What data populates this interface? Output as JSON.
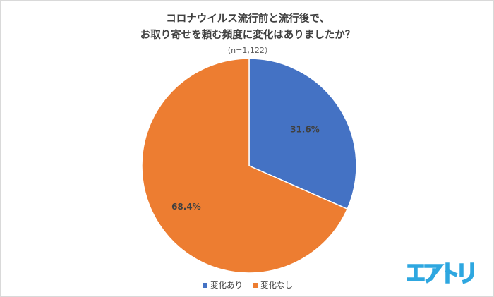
{
  "title": {
    "line1": "コロナウイルス流行前と流行後で、",
    "line2": "お取り寄せを頼む頻度に変化はありましたか？"
  },
  "sample_size": "（n=1,122）",
  "logo": {
    "text": "エアトリ",
    "color": "#2ea7e0",
    "icon": "airtrip-logo"
  },
  "colors": {
    "changed": "#4472c4",
    "unchanged": "#ed7d31",
    "slice_border": "#ffffff"
  },
  "chart_data": {
    "type": "pie",
    "title": "コロナウイルス流行前と流行後で、お取り寄せを頼む頻度に変化はありましたか？",
    "note": "（n=1,122）",
    "categories": [
      "変化あり",
      "変化なし"
    ],
    "values": [
      31.6,
      68.4
    ],
    "data_labels": [
      "31.6%",
      "68.4%"
    ],
    "start_angle": "12 o'clock",
    "direction": "clockwise",
    "legend": "bottom-center"
  }
}
